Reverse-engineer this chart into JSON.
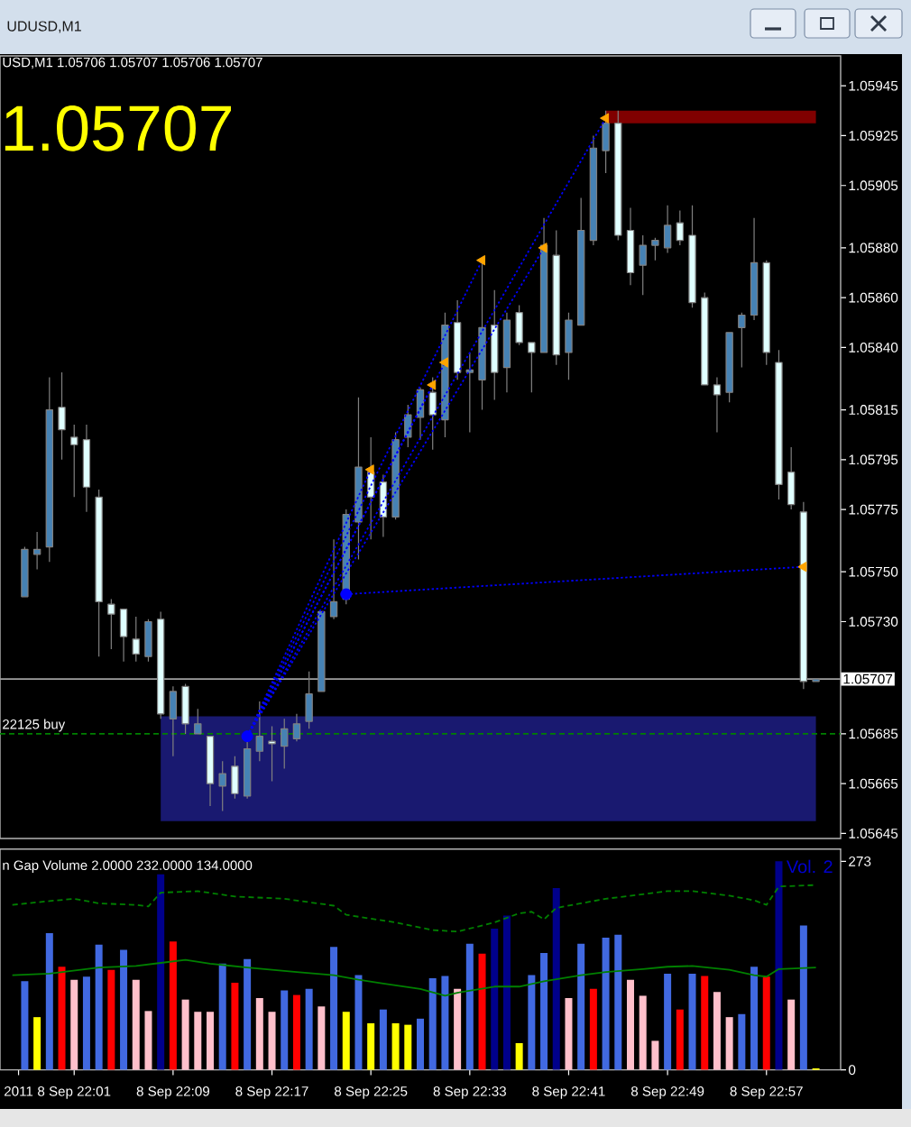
{
  "chart_data": [
    {
      "type": "candlestick",
      "title": "UDUSD,M1",
      "subtitle": "USD,M1 1.05706 1.05707 1.05706 1.05707",
      "annotations": [
        "1.05707"
      ],
      "x": [
        "2011-09-08T21:57",
        "2011-09-08T21:58",
        "2011-09-08T21:59",
        "2011-09-08T22:00",
        "2011-09-08T22:01",
        "2011-09-08T22:02",
        "2011-09-08T22:03",
        "2011-09-08T22:04",
        "2011-09-08T22:05",
        "2011-09-08T22:06",
        "2011-09-08T22:07",
        "2011-09-08T22:08",
        "2011-09-08T22:09",
        "2011-09-08T22:10",
        "2011-09-08T22:11",
        "2011-09-08T22:12",
        "2011-09-08T22:13",
        "2011-09-08T22:14",
        "2011-09-08T22:15",
        "2011-09-08T22:16",
        "2011-09-08T22:17",
        "2011-09-08T22:18",
        "2011-09-08T22:19",
        "2011-09-08T22:20",
        "2011-09-08T22:21",
        "2011-09-08T22:22",
        "2011-09-08T22:23",
        "2011-09-08T22:24",
        "2011-09-08T22:25",
        "2011-09-08T22:26",
        "2011-09-08T22:27",
        "2011-09-08T22:28",
        "2011-09-08T22:29",
        "2011-09-08T22:30",
        "2011-09-08T22:31",
        "2011-09-08T22:32",
        "2011-09-08T22:33",
        "2011-09-08T22:34",
        "2011-09-08T22:35",
        "2011-09-08T22:36",
        "2011-09-08T22:37",
        "2011-09-08T22:38",
        "2011-09-08T22:39",
        "2011-09-08T22:40",
        "2011-09-08T22:41",
        "2011-09-08T22:42",
        "2011-09-08T22:43",
        "2011-09-08T22:44",
        "2011-09-08T22:45",
        "2011-09-08T22:46",
        "2011-09-08T22:47",
        "2011-09-08T22:48",
        "2011-09-08T22:49",
        "2011-09-08T22:50",
        "2011-09-08T22:51",
        "2011-09-08T22:52",
        "2011-09-08T22:53",
        "2011-09-08T22:54",
        "2011-09-08T22:55",
        "2011-09-08T22:56",
        "2011-09-08T22:57",
        "2011-09-08T22:58",
        "2011-09-08T22:59",
        "2011-09-08T23:00",
        "2011-09-08T23:01"
      ],
      "ohlc": [
        [
          1.0574,
          1.0576,
          1.0574,
          1.05759
        ],
        [
          1.05757,
          1.05766,
          1.05751,
          1.05759
        ],
        [
          1.0576,
          1.05828,
          1.05754,
          1.05815
        ],
        [
          1.05816,
          1.0583,
          1.05795,
          1.05807
        ],
        [
          1.05804,
          1.05809,
          1.0578,
          1.05801
        ],
        [
          1.05803,
          1.05809,
          1.05774,
          1.05784
        ],
        [
          1.0578,
          1.05783,
          1.05716,
          1.05738
        ],
        [
          1.05737,
          1.05739,
          1.05719,
          1.05733
        ],
        [
          1.05735,
          1.05735,
          1.05714,
          1.05724
        ],
        [
          1.05723,
          1.05732,
          1.05714,
          1.05717
        ],
        [
          1.05716,
          1.05731,
          1.05714,
          1.0573
        ],
        [
          1.05731,
          1.05734,
          1.05691,
          1.05693
        ],
        [
          1.05691,
          1.05704,
          1.05676,
          1.05702
        ],
        [
          1.05704,
          1.05705,
          1.05685,
          1.05689
        ],
        [
          1.05685,
          1.05695,
          1.05685,
          1.05689
        ],
        [
          1.05684,
          1.05684,
          1.05656,
          1.05665
        ],
        [
          1.05664,
          1.05674,
          1.05654,
          1.05669
        ],
        [
          1.05672,
          1.05676,
          1.05659,
          1.05661
        ],
        [
          1.0566,
          1.05683,
          1.05659,
          1.05679
        ],
        [
          1.05678,
          1.05698,
          1.05674,
          1.05684
        ],
        [
          1.05682,
          1.05688,
          1.05666,
          1.05681
        ],
        [
          1.0568,
          1.05691,
          1.05671,
          1.05687
        ],
        [
          1.05683,
          1.05693,
          1.05682,
          1.05689
        ],
        [
          1.0569,
          1.0571,
          1.05687,
          1.05701
        ],
        [
          1.05702,
          1.05734,
          1.05702,
          1.05734
        ],
        [
          1.05732,
          1.05763,
          1.05731,
          1.05738
        ],
        [
          1.05739,
          1.05775,
          1.05737,
          1.05773
        ],
        [
          1.0577,
          1.0582,
          1.05755,
          1.05792
        ],
        [
          1.0579,
          1.05804,
          1.05763,
          1.0578
        ],
        [
          1.05786,
          1.05789,
          1.05764,
          1.05772
        ],
        [
          1.05772,
          1.05806,
          1.05771,
          1.05803
        ],
        [
          1.05804,
          1.05817,
          1.058,
          1.05813
        ],
        [
          1.05812,
          1.05824,
          1.05803,
          1.05823
        ],
        [
          1.05822,
          1.05828,
          1.05799,
          1.05813
        ],
        [
          1.05811,
          1.05854,
          1.05804,
          1.05849
        ],
        [
          1.0585,
          1.05859,
          1.05827,
          1.0583
        ],
        [
          1.0583,
          1.05838,
          1.05806,
          1.05831
        ],
        [
          1.05827,
          1.05875,
          1.05815,
          1.05848
        ],
        [
          1.05849,
          1.05863,
          1.05819,
          1.0583
        ],
        [
          1.05832,
          1.05854,
          1.05822,
          1.05851
        ],
        [
          1.05854,
          1.05857,
          1.05841,
          1.05842
        ],
        [
          1.05842,
          1.05842,
          1.05822,
          1.05838
        ],
        [
          1.05838,
          1.05892,
          1.05838,
          1.05881
        ],
        [
          1.05877,
          1.05887,
          1.05833,
          1.05837
        ],
        [
          1.05838,
          1.05854,
          1.05827,
          1.05851
        ],
        [
          1.05849,
          1.059,
          1.05849,
          1.05887
        ],
        [
          1.05883,
          1.05925,
          1.05881,
          1.0592
        ],
        [
          1.05919,
          1.05935,
          1.0591,
          1.0593
        ],
        [
          1.0593,
          1.05935,
          1.05883,
          1.05885
        ],
        [
          1.05887,
          1.05896,
          1.05865,
          1.0587
        ],
        [
          1.05873,
          1.05885,
          1.05861,
          1.05881
        ],
        [
          1.05881,
          1.05884,
          1.05875,
          1.05883
        ],
        [
          1.0588,
          1.05897,
          1.05878,
          1.05889
        ],
        [
          1.0589,
          1.05895,
          1.05881,
          1.05883
        ],
        [
          1.05885,
          1.05897,
          1.05856,
          1.05858
        ],
        [
          1.0586,
          1.05862,
          1.05825,
          1.05825
        ],
        [
          1.05825,
          1.05828,
          1.05806,
          1.05821
        ],
        [
          1.05822,
          1.05846,
          1.05818,
          1.05846
        ],
        [
          1.05848,
          1.05854,
          1.05832,
          1.05853
        ],
        [
          1.05853,
          1.05892,
          1.05851,
          1.05874
        ],
        [
          1.05874,
          1.05875,
          1.05833,
          1.05838
        ],
        [
          1.05834,
          1.05839,
          1.05779,
          1.05785
        ],
        [
          1.0579,
          1.058,
          1.05775,
          1.05777
        ],
        [
          1.05774,
          1.05778,
          1.05703,
          1.05706
        ],
        [
          1.05706,
          1.05707,
          1.05706,
          1.05707
        ]
      ],
      "color": "#808080",
      "colors": [
        "#4682b4",
        "#4682b4",
        "#4682b4",
        "#e0ffff",
        "#e0ffff",
        "#e0ffff",
        "#e0ffff",
        "#e0ffff",
        "#e0ffff",
        "#e0ffff",
        "#4682b4",
        "#e0ffff",
        "#4682b4",
        "#e0ffff",
        "#4682b4",
        "#e0ffff",
        "#4682b4",
        "#e0ffff",
        "#4682b4",
        "#4682b4",
        "#e0ffff",
        "#4682b4",
        "#4682b4",
        "#4682b4",
        "#4682b4",
        "#4682b4",
        "#4682b4",
        "#4682b4",
        "#e0ffff",
        "#e0ffff",
        "#4682b4",
        "#4682b4",
        "#4682b4",
        "#e0ffff",
        "#4682b4",
        "#e0ffff",
        "#4682b4",
        "#4682b4",
        "#e0ffff",
        "#4682b4",
        "#e0ffff",
        "#e0ffff",
        "#4682b4",
        "#e0ffff",
        "#4682b4",
        "#4682b4",
        "#4682b4",
        "#4682b4",
        "#e0ffff",
        "#e0ffff",
        "#4682b4",
        "#4682b4",
        "#4682b4",
        "#e0ffff",
        "#e0ffff",
        "#e0ffff",
        "#e0ffff",
        "#4682b4",
        "#4682b4",
        "#4682b4",
        "#e0ffff",
        "#e0ffff",
        "#e0ffff",
        "#e0ffff",
        "#4682b4"
      ],
      "series": [
        {
          "type": "area",
          "x": [
            "2011-09-08T22:08",
            "2011-09-08T23:01"
          ],
          "values": [
            null,
            null
          ],
          "lower": [
            1.0565,
            1.0565
          ],
          "upper": [
            1.05692,
            1.05692
          ],
          "color": "#191970"
        },
        {
          "type": "area",
          "x": [
            "2011-09-08T22:44",
            "2011-09-08T23:01"
          ],
          "values": [
            null,
            null
          ],
          "lower": [
            1.0593,
            1.0593
          ],
          "upper": [
            1.05935,
            1.05935
          ],
          "color": "#800000"
        },
        {
          "type": "line",
          "x": [
            "2011-09-08T22:15",
            "2011-09-08T22:25"
          ],
          "values": [
            1.05684,
            1.05791
          ],
          "color": "#0000ff",
          "line_style": "dotted"
        },
        {
          "type": "line",
          "x": [
            "2011-09-08T22:15",
            "2011-09-08T22:30"
          ],
          "values": [
            1.05684,
            1.05825
          ],
          "color": "#0000ff",
          "line_style": "dotted"
        },
        {
          "type": "line",
          "x": [
            "2011-09-08T22:15",
            "2011-09-08T22:31"
          ],
          "values": [
            1.05684,
            1.05834
          ],
          "color": "#0000ff",
          "line_style": "dotted"
        },
        {
          "type": "line",
          "x": [
            "2011-09-08T22:15",
            "2011-09-08T22:34"
          ],
          "values": [
            1.05684,
            1.05875
          ],
          "color": "#0000ff",
          "line_style": "dotted"
        },
        {
          "type": "line",
          "x": [
            "2011-09-08T22:15",
            "2011-09-08T22:39"
          ],
          "values": [
            1.05684,
            1.0588
          ],
          "color": "#0000ff",
          "line_style": "dotted"
        },
        {
          "type": "line",
          "x": [
            "2011-09-08T22:15",
            "2011-09-08T22:44"
          ],
          "values": [
            1.05684,
            1.05932
          ],
          "color": "#0000ff",
          "line_style": "dotted"
        },
        {
          "type": "line",
          "x": [
            "2011-09-08T22:23",
            "2011-09-08T23:00"
          ],
          "values": [
            1.05741,
            1.05752
          ],
          "color": "#0000ff",
          "line_style": "dotted"
        },
        {
          "type": "scatter",
          "x": [
            "2011-09-08T22:25",
            "2011-09-08T22:30",
            "2011-09-08T22:31",
            "2011-09-08T22:34",
            "2011-09-08T22:39",
            "2011-09-08T22:44",
            "2011-09-08T23:00"
          ],
          "values": [
            1.05791,
            1.05825,
            1.05834,
            1.05875,
            1.0588,
            1.05932,
            1.05752
          ],
          "color": "#ffa500",
          "marker": "triangle"
        },
        {
          "type": "scatter",
          "x": [
            "2011-09-08T22:15",
            "2011-09-08T22:23"
          ],
          "values": [
            1.05684,
            1.05741
          ],
          "color": "#0000ff",
          "marker": "circle"
        }
      ],
      "ref_lines": [
        {
          "axis": "y",
          "value": 1.05707,
          "label": "1.05707",
          "color": "#a0a0a0"
        },
        {
          "axis": "y",
          "value": 1.05685,
          "label": "22125 buy",
          "color": "#008000",
          "line_style": "dashed"
        }
      ],
      "xlim": [
        "2011-09-08T21:55",
        "2011-09-08T23:03"
      ],
      "ylim": [
        1.05643,
        1.05957
      ],
      "yticks": [
        1.05945,
        1.05925,
        1.05905,
        {
          "value": 1.0588,
          "label": "1.05880"
        },
        {
          "value": 1.0586,
          "label": "1.05860"
        },
        {
          "value": 1.0584,
          "label": "1.05840"
        },
        1.05815,
        1.05795,
        1.05775,
        {
          "value": 1.0575,
          "label": "1.05750"
        },
        {
          "value": 1.0573,
          "label": "1.05730"
        },
        1.05685,
        1.05665,
        1.05645
      ],
      "tick_labels": "y"
    },
    {
      "type": "bar",
      "title": "n Gap Volume 2.0000 232.0000 134.0000",
      "annotations": [
        "Vol. 2"
      ],
      "x": [
        "2011-09-08T21:57",
        "2011-09-08T21:58",
        "2011-09-08T21:59",
        "2011-09-08T22:00",
        "2011-09-08T22:01",
        "2011-09-08T22:02",
        "2011-09-08T22:03",
        "2011-09-08T22:04",
        "2011-09-08T22:05",
        "2011-09-08T22:06",
        "2011-09-08T22:07",
        "2011-09-08T22:08",
        "2011-09-08T22:09",
        "2011-09-08T22:10",
        "2011-09-08T22:11",
        "2011-09-08T22:12",
        "2011-09-08T22:13",
        "2011-09-08T22:14",
        "2011-09-08T22:15",
        "2011-09-08T22:16",
        "2011-09-08T22:17",
        "2011-09-08T22:18",
        "2011-09-08T22:19",
        "2011-09-08T22:20",
        "2011-09-08T22:21",
        "2011-09-08T22:22",
        "2011-09-08T22:23",
        "2011-09-08T22:24",
        "2011-09-08T22:25",
        "2011-09-08T22:26",
        "2011-09-08T22:27",
        "2011-09-08T22:28",
        "2011-09-08T22:29",
        "2011-09-08T22:30",
        "2011-09-08T22:31",
        "2011-09-08T22:32",
        "2011-09-08T22:33",
        "2011-09-08T22:34",
        "2011-09-08T22:35",
        "2011-09-08T22:36",
        "2011-09-08T22:37",
        "2011-09-08T22:38",
        "2011-09-08T22:39",
        "2011-09-08T22:40",
        "2011-09-08T22:41",
        "2011-09-08T22:42",
        "2011-09-08T22:43",
        "2011-09-08T22:44",
        "2011-09-08T22:45",
        "2011-09-08T22:46",
        "2011-09-08T22:47",
        "2011-09-08T22:48",
        "2011-09-08T22:49",
        "2011-09-08T22:50",
        "2011-09-08T22:51",
        "2011-09-08T22:52",
        "2011-09-08T22:53",
        "2011-09-08T22:54",
        "2011-09-08T22:55",
        "2011-09-08T22:56",
        "2011-09-08T22:57",
        "2011-09-08T22:58",
        "2011-09-08T22:59",
        "2011-09-08T23:00",
        "2011-09-08T23:01"
      ],
      "series": [
        {
          "values": [
            116,
            69,
            179,
            135,
            118,
            122,
            164,
            131,
            157,
            118,
            77,
            256,
            168,
            92,
            76,
            76,
            139,
            114,
            145,
            94,
            76,
            104,
            98,
            106,
            83,
            161,
            76,
            124,
            61,
            79,
            61,
            59,
            67,
            120,
            123,
            106,
            165,
            152,
            185,
            202,
            35,
            124,
            153,
            238,
            94,
            165,
            106,
            173,
            177,
            118,
            97,
            38,
            126,
            79,
            126,
            123,
            102,
            69,
            73,
            135,
            122,
            273,
            92,
            189,
            2
          ],
          "colors": [
            "#4169e1",
            "#ffff00",
            "#4169e1",
            "#ff0000",
            "#ffc0cb",
            "#4169e1",
            "#4169e1",
            "#ff0000",
            "#4169e1",
            "#ffc0cb",
            "#ffc0cb",
            "#00008b",
            "#ff0000",
            "#ffc0cb",
            "#ffc0cb",
            "#ffc0cb",
            "#4169e1",
            "#ff0000",
            "#4169e1",
            "#ffc0cb",
            "#ffc0cb",
            "#4169e1",
            "#ff0000",
            "#4169e1",
            "#ffc0cb",
            "#4169e1",
            "#ffff00",
            "#4169e1",
            "#ffff00",
            "#4169e1",
            "#ffff00",
            "#ffff00",
            "#4169e1",
            "#4169e1",
            "#4169e1",
            "#ffc0cb",
            "#4169e1",
            "#ff0000",
            "#00008b",
            "#00008b",
            "#ffff00",
            "#4169e1",
            "#4169e1",
            "#00008b",
            "#ffc0cb",
            "#4169e1",
            "#ff0000",
            "#4169e1",
            "#4169e1",
            "#ffc0cb",
            "#ffc0cb",
            "#ffc0cb",
            "#4169e1",
            "#ff0000",
            "#4169e1",
            "#ff0000",
            "#ffc0cb",
            "#ffc0cb",
            "#4169e1",
            "#4169e1",
            "#ff0000",
            "#00008b",
            "#ffc0cb",
            "#4169e1",
            "#ffff00"
          ]
        },
        {
          "type": "line",
          "x": [
            "2011-09-08T21:56",
            "2011-09-08T21:59",
            "2011-09-08T22:01",
            "2011-09-08T22:03",
            "2011-09-08T22:06",
            "2011-09-08T22:07",
            "2011-09-08T22:08",
            "2011-09-08T22:11",
            "2011-09-08T22:14",
            "2011-09-08T22:18",
            "2011-09-08T22:22",
            "2011-09-08T22:23",
            "2011-09-08T22:27",
            "2011-09-08T22:30",
            "2011-09-08T22:32",
            "2011-09-08T22:35",
            "2011-09-08T22:37",
            "2011-09-08T22:38",
            "2011-09-08T22:39",
            "2011-09-08T22:40",
            "2011-09-08T22:42",
            "2011-09-08T22:44",
            "2011-09-08T22:47",
            "2011-09-08T22:49",
            "2011-09-08T22:51",
            "2011-09-08T22:54",
            "2011-09-08T22:56",
            "2011-09-08T22:57",
            "2011-09-08T22:58",
            "2011-09-08T23:01"
          ],
          "values": [
            216,
            221,
            224,
            218,
            216,
            214,
            232,
            234,
            227,
            224,
            215,
            203,
            193,
            183,
            181,
            193,
            205,
            207,
            197,
            212,
            218,
            224,
            230,
            234,
            234,
            228,
            222,
            216,
            240,
            242
          ],
          "color": "#008000",
          "line_style": "dashed"
        },
        {
          "type": "line",
          "x": [
            "2011-09-08T21:56",
            "2011-09-08T21:59",
            "2011-09-08T22:01",
            "2011-09-08T22:03",
            "2011-09-08T22:06",
            "2011-09-08T22:08",
            "2011-09-08T22:10",
            "2011-09-08T22:12",
            "2011-09-08T22:15",
            "2011-09-08T22:19",
            "2011-09-08T22:22",
            "2011-09-08T22:24",
            "2011-09-08T22:26",
            "2011-09-08T22:29",
            "2011-09-08T22:31",
            "2011-09-08T22:32",
            "2011-09-08T22:35",
            "2011-09-08T22:37",
            "2011-09-08T22:39",
            "2011-09-08T22:42",
            "2011-09-08T22:44",
            "2011-09-08T22:47",
            "2011-09-08T22:49",
            "2011-09-08T22:51",
            "2011-09-08T22:54",
            "2011-09-08T22:56",
            "2011-09-08T22:57",
            "2011-09-08T22:58",
            "2011-09-08T23:01"
          ],
          "values": [
            124,
            126,
            130,
            134,
            136,
            140,
            144,
            139,
            134,
            128,
            124,
            118,
            113,
            106,
            97,
            101,
            109,
            109,
            116,
            124,
            128,
            132,
            135,
            136,
            131,
            124,
            122,
            132,
            134
          ],
          "color": "#008000",
          "line_style": "solid"
        }
      ],
      "xlim": [
        "2011-09-08T21:55",
        "2011-09-08T23:03"
      ],
      "ylim": [
        0,
        289
      ],
      "yticks": [
        0,
        273
      ],
      "xticks": [
        {
          "value": "2011-09-08T21:56:30",
          "label": "2011"
        },
        {
          "value": "2011-09-08T22:01",
          "label": "8 Sep 22:01"
        },
        {
          "value": "2011-09-08T22:09",
          "label": "8 Sep 22:09"
        },
        {
          "value": "2011-09-08T22:17",
          "label": "8 Sep 22:17"
        },
        {
          "value": "2011-09-08T22:25",
          "label": "8 Sep 22:25"
        },
        {
          "value": "2011-09-08T22:33",
          "label": "8 Sep 22:33"
        },
        {
          "value": "2011-09-08T22:41",
          "label": "8 Sep 22:41"
        },
        {
          "value": "2011-09-08T22:49",
          "label": "8 Sep 22:49"
        },
        {
          "value": "2011-09-08T22:57",
          "label": "8 Sep 22:57"
        }
      ]
    }
  ]
}
